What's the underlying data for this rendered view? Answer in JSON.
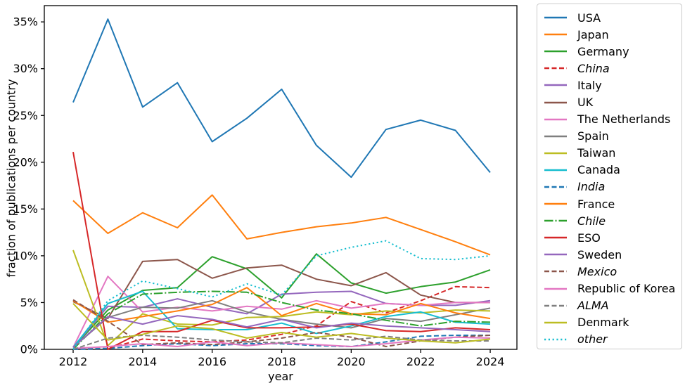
{
  "chart_data": {
    "type": "line",
    "title": "",
    "xlabel": "year",
    "ylabel": "fraction of publications per country",
    "grid": false,
    "legend_position": "outside-right",
    "x": [
      2012,
      2013,
      2014,
      2015,
      2016,
      2017,
      2018,
      2019,
      2020,
      2021,
      2022,
      2023,
      2024
    ],
    "xticks": [
      2012,
      2014,
      2016,
      2018,
      2020,
      2022,
      2024
    ],
    "yticks_percent": [
      0,
      5,
      10,
      15,
      20,
      25,
      30,
      35
    ],
    "ytick_suffix": "%",
    "ylim": [
      0,
      36.7
    ],
    "axis_color": "#000000",
    "series": [
      {
        "name": "USA",
        "color": "#1f77b4",
        "style": "solid",
        "italic": false,
        "values": [
          26.4,
          35.3,
          25.9,
          28.5,
          22.2,
          24.7,
          27.8,
          21.8,
          18.4,
          23.5,
          24.5,
          23.4,
          18.9
        ]
      },
      {
        "name": "Japan",
        "color": "#ff7f0e",
        "style": "solid",
        "italic": false,
        "values": [
          15.9,
          12.4,
          14.6,
          13.0,
          16.5,
          11.8,
          12.5,
          13.1,
          13.5,
          14.1,
          12.8,
          11.5,
          10.1
        ]
      },
      {
        "name": "Germany",
        "color": "#2ca02c",
        "style": "solid",
        "italic": false,
        "values": [
          0.2,
          4.2,
          6.3,
          6.6,
          9.9,
          8.6,
          5.5,
          10.2,
          7.1,
          6.0,
          6.7,
          7.2,
          8.5
        ]
      },
      {
        "name": "China",
        "color": "#d62728",
        "style": "dashed",
        "italic": true,
        "values": [
          0.1,
          0.1,
          1.1,
          0.9,
          0.8,
          1.0,
          1.6,
          2.5,
          5.1,
          3.9,
          5.2,
          6.7,
          6.6
        ]
      },
      {
        "name": "Italy",
        "color": "#9467bd",
        "style": "solid",
        "italic": false,
        "values": [
          0.2,
          4.6,
          4.5,
          5.4,
          4.5,
          3.8,
          5.9,
          6.1,
          6.2,
          4.9,
          4.7,
          4.7,
          5.2
        ]
      },
      {
        "name": "UK",
        "color": "#8c564b",
        "style": "solid",
        "italic": false,
        "values": [
          5.1,
          3.3,
          9.4,
          9.6,
          7.6,
          8.7,
          9.0,
          7.5,
          6.8,
          8.2,
          5.8,
          5.0,
          5.0
        ]
      },
      {
        "name": "The Netherlands",
        "color": "#e377c2",
        "style": "solid",
        "italic": false,
        "values": [
          0.2,
          7.8,
          4.0,
          4.5,
          4.1,
          4.6,
          4.3,
          5.2,
          4.4,
          4.9,
          4.7,
          5.0,
          5.0
        ]
      },
      {
        "name": "Spain",
        "color": "#7f7f7f",
        "style": "solid",
        "italic": false,
        "values": [
          0.2,
          3.4,
          4.5,
          4.4,
          5.2,
          4.0,
          3.2,
          2.7,
          2.3,
          3.3,
          3.0,
          3.7,
          4.4
        ]
      },
      {
        "name": "Taiwan",
        "color": "#bcbd22",
        "style": "solid",
        "italic": false,
        "values": [
          10.6,
          0.4,
          3.8,
          2.7,
          2.6,
          3.4,
          3.5,
          4.0,
          3.7,
          4.1,
          3.9,
          4.2,
          4.1
        ]
      },
      {
        "name": "Canada",
        "color": "#17becf",
        "style": "solid",
        "italic": false,
        "values": [
          0.2,
          4.9,
          6.2,
          2.2,
          2.1,
          2.1,
          2.8,
          1.7,
          2.5,
          3.5,
          4.0,
          2.9,
          2.7
        ]
      },
      {
        "name": "India",
        "color": "#1f77b4",
        "style": "dashed",
        "italic": true,
        "values": [
          0.0,
          0.1,
          0.4,
          0.6,
          0.4,
          0.6,
          0.6,
          0.4,
          0.3,
          0.8,
          1.4,
          1.5,
          1.5
        ]
      },
      {
        "name": "France",
        "color": "#ff7f0e",
        "style": "solid",
        "italic": false,
        "values": [
          5.2,
          2.9,
          3.5,
          4.1,
          4.8,
          6.6,
          3.6,
          4.9,
          3.8,
          3.7,
          4.9,
          3.9,
          3.3
        ]
      },
      {
        "name": "Chile",
        "color": "#2ca02c",
        "style": "dashdot",
        "italic": true,
        "values": [
          0.0,
          3.8,
          5.9,
          6.1,
          6.2,
          6.1,
          5.0,
          4.2,
          3.8,
          3.1,
          2.5,
          3.0,
          2.9
        ]
      },
      {
        "name": "ESO",
        "color": "#d62728",
        "style": "solid",
        "italic": false,
        "values": [
          21.1,
          0.0,
          1.9,
          1.9,
          3.1,
          2.3,
          2.3,
          2.4,
          2.7,
          2.0,
          1.9,
          2.3,
          2.1
        ]
      },
      {
        "name": "Sweden",
        "color": "#9467bd",
        "style": "solid",
        "italic": false,
        "values": [
          0.2,
          3.5,
          2.7,
          3.6,
          3.2,
          2.4,
          3.2,
          2.3,
          2.8,
          2.5,
          2.3,
          2.1,
          1.9
        ]
      },
      {
        "name": "Mexico",
        "color": "#8c564b",
        "style": "dashed",
        "italic": true,
        "values": [
          5.3,
          3.0,
          0.5,
          0.7,
          0.5,
          0.8,
          1.2,
          1.8,
          1.3,
          0.3,
          0.9,
          1.3,
          1.5
        ]
      },
      {
        "name": "Republic of Korea",
        "color": "#e377c2",
        "style": "solid",
        "italic": false,
        "values": [
          0.1,
          0.3,
          0.6,
          0.3,
          0.8,
          0.4,
          0.7,
          0.5,
          0.3,
          0.6,
          1.0,
          1.3,
          1.2
        ]
      },
      {
        "name": "ALMA",
        "color": "#7f7f7f",
        "style": "dashed",
        "italic": true,
        "values": [
          0.0,
          1.2,
          1.5,
          1.3,
          1.0,
          0.8,
          0.7,
          1.2,
          1.0,
          1.4,
          1.0,
          0.9,
          0.9
        ]
      },
      {
        "name": "Denmark",
        "color": "#bcbd22",
        "style": "solid",
        "italic": false,
        "values": [
          4.9,
          1.0,
          1.6,
          2.5,
          2.2,
          1.2,
          1.8,
          1.3,
          1.7,
          1.2,
          0.9,
          0.7,
          1.1
        ]
      },
      {
        "name": "other",
        "color": "#17becf",
        "style": "dotted",
        "italic": true,
        "values": [
          0.0,
          5.2,
          7.3,
          6.5,
          5.6,
          7.0,
          5.8,
          10.0,
          10.9,
          11.6,
          9.7,
          9.6,
          10.0
        ]
      }
    ]
  }
}
